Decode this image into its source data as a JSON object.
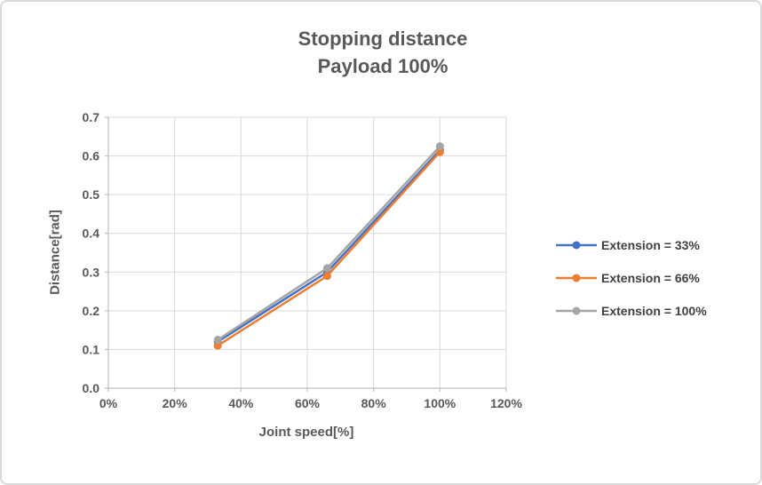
{
  "chart_data": {
    "type": "line",
    "title": "Stopping distance",
    "subtitle": "Payload 100%",
    "xlabel": "Joint speed[%]",
    "ylabel": "Distance[rad]",
    "x": [
      33,
      66,
      100
    ],
    "series": [
      {
        "name": "Extension = 33%",
        "color": "#4472C4",
        "values": [
          0.12,
          0.3,
          0.615
        ]
      },
      {
        "name": "Extension = 66%",
        "color": "#ED7D31",
        "values": [
          0.11,
          0.29,
          0.61
        ]
      },
      {
        "name": "Extension = 100%",
        "color": "#A5A5A5",
        "values": [
          0.125,
          0.31,
          0.625
        ]
      }
    ],
    "xlim": [
      0,
      120
    ],
    "ylim": [
      0,
      0.7
    ],
    "xticks": {
      "values": [
        0,
        20,
        40,
        60,
        80,
        100,
        120
      ],
      "labels": [
        "0%",
        "20%",
        "40%",
        "60%",
        "80%",
        "100%",
        "120%"
      ]
    },
    "yticks": {
      "values": [
        0,
        0.1,
        0.2,
        0.3,
        0.4,
        0.5,
        0.6,
        0.7
      ],
      "labels": [
        "0.0",
        "0.1",
        "0.2",
        "0.3",
        "0.4",
        "0.5",
        "0.6",
        "0.7"
      ]
    },
    "grid": true,
    "legend_position": "right",
    "colors": {
      "grid": "#D9D9D9",
      "axis": "#BFBFBF",
      "title_text": "#595959",
      "tick_text": "#595959",
      "legend_text": "#404040"
    }
  }
}
